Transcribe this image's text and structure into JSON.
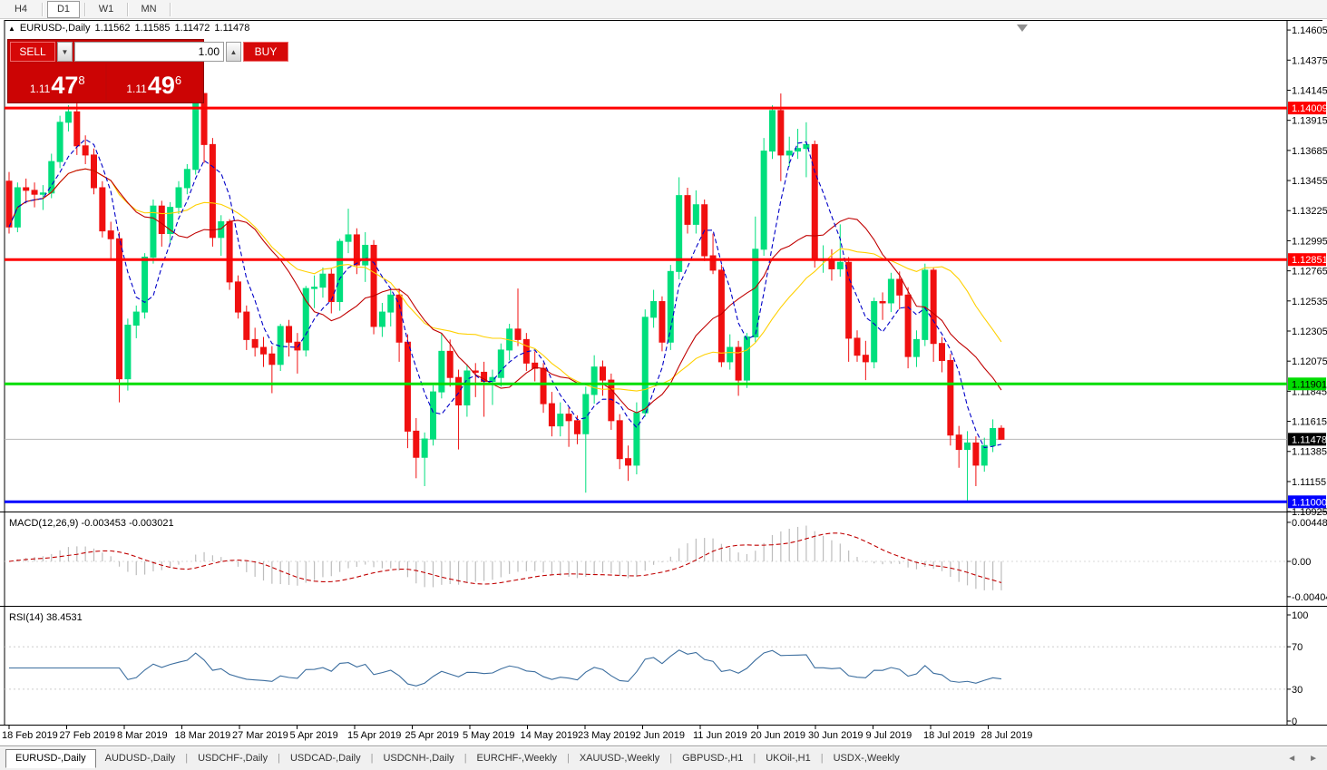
{
  "toolbar": {
    "timeframes": [
      {
        "label": "H4",
        "active": false
      },
      {
        "label": "D1",
        "active": true
      },
      {
        "label": "W1",
        "active": false
      },
      {
        "label": "MN",
        "active": false
      }
    ]
  },
  "header": {
    "symbol": "EURUSD-,Daily",
    "open": "1.11562",
    "high": "1.11585",
    "low": "1.11472",
    "close": "1.11478"
  },
  "trade_panel": {
    "sell_label": "SELL",
    "buy_label": "BUY",
    "volume": "1.00",
    "sell_price_small": "1.11",
    "sell_price_big": "47",
    "sell_price_sup": "8",
    "buy_price_small": "1.11",
    "buy_price_big": "49",
    "buy_price_sup": "6",
    "spinner_up": "▲",
    "spinner_down": "▼"
  },
  "tabs": {
    "items": [
      {
        "label": "EURUSD-,Daily",
        "active": true
      },
      {
        "label": "AUDUSD-,Daily",
        "active": false
      },
      {
        "label": "USDCHF-,Daily",
        "active": false
      },
      {
        "label": "USDCAD-,Daily",
        "active": false
      },
      {
        "label": "USDCNH-,Daily",
        "active": false
      },
      {
        "label": "EURCHF-,Weekly",
        "active": false
      },
      {
        "label": "XAUUSD-,Weekly",
        "active": false
      },
      {
        "label": "GBPUSD-,H1",
        "active": false
      },
      {
        "label": "UKOil-,H1",
        "active": false
      },
      {
        "label": "USDX-,Weekly",
        "active": false
      }
    ],
    "scroll_left": "◄",
    "scroll_right": "►"
  },
  "chart_data": {
    "type": "candlestick",
    "title": "EURUSD-,Daily",
    "price_axis_ticks": [
      "1.14605",
      "1.14375",
      "1.14145",
      "1.13915",
      "1.13685",
      "1.13455",
      "1.13225",
      "1.12995",
      "1.12765",
      "1.12535",
      "1.12305",
      "1.12075",
      "1.11845",
      "1.11615",
      "1.11385",
      "1.11155",
      "1.10925"
    ],
    "x_labels": [
      "18 Feb 2019",
      "27 Feb 2019",
      "8 Mar 2019",
      "18 Mar 2019",
      "27 Mar 2019",
      "5 Apr 2019",
      "15 Apr 2019",
      "25 Apr 2019",
      "5 May 2019",
      "14 May 2019",
      "23 May 2019",
      "2 Jun 2019",
      "11 Jun 2019",
      "20 Jun 2019",
      "30 Jun 2019",
      "9 Jul 2019",
      "18 Jul 2019",
      "28 Jul 2019"
    ],
    "hlines": [
      {
        "value": 1.14009,
        "label": "1.14009",
        "color": "#ff0000",
        "text": "#ffffff"
      },
      {
        "value": 1.12851,
        "label": "1.12851",
        "color": "#ff0000",
        "text": "#ffffff"
      },
      {
        "value": 1.11901,
        "label": "1.11901",
        "color": "#00dd00",
        "text": "#000000"
      },
      {
        "value": 1.11,
        "label": "1.11000",
        "color": "#0000ff",
        "text": "#ffffff"
      }
    ],
    "current_price": {
      "value": 1.11478,
      "label": "1.11478",
      "color": "#000000",
      "text": "#ffffff"
    },
    "colors": {
      "bull": "#00df7d",
      "bear": "#f01010",
      "ma_fast": "#0000c8",
      "ma_mid": "#c00000",
      "ma_slow": "#ffd000",
      "macd_hist": "#bdbdbd",
      "macd_signal": "#c00000",
      "rsi": "#3c6e9f",
      "grid": "#c8c8c8"
    },
    "candles": [
      [
        1.1345,
        1.1352,
        1.1305,
        1.131
      ],
      [
        1.131,
        1.1344,
        1.1306,
        1.134
      ],
      [
        1.134,
        1.1347,
        1.1328,
        1.1338
      ],
      [
        1.1338,
        1.1344,
        1.1325,
        1.1335
      ],
      [
        1.1335,
        1.1342,
        1.1323,
        1.1336
      ],
      [
        1.1336,
        1.1366,
        1.1332,
        1.136
      ],
      [
        1.136,
        1.1395,
        1.1355,
        1.139
      ],
      [
        1.139,
        1.1403,
        1.1383,
        1.1398
      ],
      [
        1.1398,
        1.1405,
        1.1365,
        1.1372
      ],
      [
        1.1372,
        1.138,
        1.1358,
        1.1365
      ],
      [
        1.1365,
        1.137,
        1.1335,
        1.134
      ],
      [
        1.134,
        1.1345,
        1.1302,
        1.1307
      ],
      [
        1.1307,
        1.1314,
        1.1285,
        1.1301
      ],
      [
        1.1301,
        1.1306,
        1.1176,
        1.1194
      ],
      [
        1.1194,
        1.124,
        1.1185,
        1.1235
      ],
      [
        1.1235,
        1.125,
        1.1225,
        1.1245
      ],
      [
        1.1245,
        1.129,
        1.124,
        1.1287
      ],
      [
        1.1287,
        1.1331,
        1.1282,
        1.1326
      ],
      [
        1.1326,
        1.133,
        1.1295,
        1.1305
      ],
      [
        1.1305,
        1.1329,
        1.1298,
        1.1325
      ],
      [
        1.1325,
        1.1345,
        1.132,
        1.134
      ],
      [
        1.134,
        1.1358,
        1.1335,
        1.1354
      ],
      [
        1.1354,
        1.1415,
        1.135,
        1.1412
      ],
      [
        1.1412,
        1.1412,
        1.1359,
        1.1373
      ],
      [
        1.1373,
        1.1378,
        1.1295,
        1.1302
      ],
      [
        1.1302,
        1.1319,
        1.1288,
        1.1314
      ],
      [
        1.1314,
        1.1316,
        1.1262,
        1.1268
      ],
      [
        1.1268,
        1.1273,
        1.124,
        1.1245
      ],
      [
        1.1245,
        1.125,
        1.1216,
        1.1224
      ],
      [
        1.1224,
        1.1233,
        1.1211,
        1.1218
      ],
      [
        1.1218,
        1.1226,
        1.1203,
        1.1213
      ],
      [
        1.1213,
        1.1219,
        1.1183,
        1.1205
      ],
      [
        1.1205,
        1.1236,
        1.12,
        1.1234
      ],
      [
        1.1234,
        1.1239,
        1.1211,
        1.1222
      ],
      [
        1.1222,
        1.1229,
        1.1198,
        1.1216
      ],
      [
        1.1216,
        1.1265,
        1.1211,
        1.1263
      ],
      [
        1.1263,
        1.1273,
        1.1248,
        1.1264
      ],
      [
        1.1264,
        1.1279,
        1.1256,
        1.1274
      ],
      [
        1.1274,
        1.1278,
        1.1244,
        1.1253
      ],
      [
        1.1253,
        1.1301,
        1.1246,
        1.1299
      ],
      [
        1.1299,
        1.1324,
        1.129,
        1.1304
      ],
      [
        1.1304,
        1.1309,
        1.1274,
        1.1281
      ],
      [
        1.1281,
        1.1306,
        1.1268,
        1.1296
      ],
      [
        1.1296,
        1.13,
        1.1228,
        1.1234
      ],
      [
        1.1234,
        1.1252,
        1.1226,
        1.1245
      ],
      [
        1.1245,
        1.1262,
        1.1234,
        1.1258
      ],
      [
        1.1258,
        1.1263,
        1.1207,
        1.1222
      ],
      [
        1.1222,
        1.1228,
        1.1141,
        1.1154
      ],
      [
        1.1154,
        1.1164,
        1.1118,
        1.1134
      ],
      [
        1.1134,
        1.1153,
        1.1112,
        1.1148
      ],
      [
        1.1148,
        1.1189,
        1.1143,
        1.1184
      ],
      [
        1.1184,
        1.1229,
        1.1179,
        1.1215
      ],
      [
        1.1215,
        1.1224,
        1.1188,
        1.1195
      ],
      [
        1.1195,
        1.1201,
        1.114,
        1.1174
      ],
      [
        1.1174,
        1.1205,
        1.1165,
        1.12
      ],
      [
        1.12,
        1.1206,
        1.118,
        1.1199
      ],
      [
        1.1199,
        1.1207,
        1.1165,
        1.1192
      ],
      [
        1.1192,
        1.1201,
        1.1174,
        1.1195
      ],
      [
        1.1195,
        1.1221,
        1.1188,
        1.1216
      ],
      [
        1.1216,
        1.1236,
        1.1208,
        1.1232
      ],
      [
        1.1232,
        1.1263,
        1.1219,
        1.1224
      ],
      [
        1.1224,
        1.1229,
        1.12,
        1.1206
      ],
      [
        1.1206,
        1.1215,
        1.1192,
        1.1202
      ],
      [
        1.1202,
        1.1206,
        1.1168,
        1.1175
      ],
      [
        1.1175,
        1.1184,
        1.115,
        1.1158
      ],
      [
        1.1158,
        1.1176,
        1.115,
        1.1167
      ],
      [
        1.1167,
        1.1172,
        1.1142,
        1.1162
      ],
      [
        1.1162,
        1.1166,
        1.1144,
        1.1152
      ],
      [
        1.1152,
        1.1188,
        1.1107,
        1.1182
      ],
      [
        1.1182,
        1.1212,
        1.1175,
        1.1203
      ],
      [
        1.1203,
        1.1208,
        1.1181,
        1.1193
      ],
      [
        1.1193,
        1.1198,
        1.1155,
        1.1162
      ],
      [
        1.1162,
        1.1167,
        1.1125,
        1.1133
      ],
      [
        1.1133,
        1.1143,
        1.1116,
        1.1128
      ],
      [
        1.1128,
        1.1176,
        1.1121,
        1.1168
      ],
      [
        1.1168,
        1.1247,
        1.1165,
        1.1241
      ],
      [
        1.1241,
        1.1262,
        1.1233,
        1.1253
      ],
      [
        1.1253,
        1.1257,
        1.1215,
        1.1222
      ],
      [
        1.1222,
        1.1281,
        1.1216,
        1.1276
      ],
      [
        1.1276,
        1.1348,
        1.127,
        1.1334
      ],
      [
        1.1334,
        1.134,
        1.1305,
        1.1312
      ],
      [
        1.1312,
        1.1338,
        1.1305,
        1.1327
      ],
      [
        1.1327,
        1.1331,
        1.1284,
        1.1288
      ],
      [
        1.1288,
        1.1305,
        1.1274,
        1.1277
      ],
      [
        1.1277,
        1.1281,
        1.1203,
        1.1207
      ],
      [
        1.1207,
        1.1228,
        1.1201,
        1.1218
      ],
      [
        1.1218,
        1.1223,
        1.1181,
        1.1193
      ],
      [
        1.1193,
        1.1229,
        1.1187,
        1.1226
      ],
      [
        1.1226,
        1.1318,
        1.1222,
        1.1293
      ],
      [
        1.1293,
        1.1378,
        1.1288,
        1.1368
      ],
      [
        1.1368,
        1.1403,
        1.1362,
        1.1399
      ],
      [
        1.1399,
        1.1412,
        1.1345,
        1.1365
      ],
      [
        1.1365,
        1.1379,
        1.1356,
        1.1368
      ],
      [
        1.1368,
        1.1385,
        1.1362,
        1.137
      ],
      [
        1.137,
        1.139,
        1.1348,
        1.1373
      ],
      [
        1.1373,
        1.1376,
        1.1279,
        1.1285
      ],
      [
        1.1285,
        1.1296,
        1.1275,
        1.1285
      ],
      [
        1.1285,
        1.1293,
        1.1269,
        1.1278
      ],
      [
        1.1278,
        1.1312,
        1.1272,
        1.1283
      ],
      [
        1.1283,
        1.1287,
        1.1207,
        1.1225
      ],
      [
        1.1225,
        1.1231,
        1.1207,
        1.1212
      ],
      [
        1.1212,
        1.1223,
        1.1193,
        1.1207
      ],
      [
        1.1207,
        1.1256,
        1.1202,
        1.1253
      ],
      [
        1.1253,
        1.126,
        1.1239,
        1.1252
      ],
      [
        1.1252,
        1.1275,
        1.1245,
        1.127
      ],
      [
        1.127,
        1.1276,
        1.1247,
        1.1258
      ],
      [
        1.1258,
        1.1264,
        1.1202,
        1.1211
      ],
      [
        1.1211,
        1.1231,
        1.1203,
        1.1224
      ],
      [
        1.1224,
        1.1282,
        1.1219,
        1.1277
      ],
      [
        1.1277,
        1.1279,
        1.1207,
        1.1221
      ],
      [
        1.1221,
        1.1226,
        1.1199,
        1.1208
      ],
      [
        1.1208,
        1.1213,
        1.1143,
        1.1151
      ],
      [
        1.1151,
        1.1158,
        1.1126,
        1.114
      ],
      [
        1.114,
        1.1154,
        1.1101,
        1.1145
      ],
      [
        1.1145,
        1.115,
        1.1112,
        1.1128
      ],
      [
        1.1128,
        1.1149,
        1.1123,
        1.1143
      ],
      [
        1.1143,
        1.1163,
        1.1138,
        1.1156
      ],
      [
        1.11562,
        1.11585,
        1.11472,
        1.11478
      ]
    ],
    "macd": {
      "label": "MACD(12,26,9)",
      "value_main": "-0.003453",
      "value_signal": "-0.003021",
      "axis": [
        "0.004481",
        "0.00",
        "-0.004048"
      ],
      "axis_max": 0.004481,
      "axis_min": -0.004048
    },
    "rsi": {
      "label": "RSI(14)",
      "value": "38.4531",
      "axis": [
        "100",
        "70",
        "30",
        "0"
      ],
      "levels": [
        70,
        30
      ]
    }
  }
}
